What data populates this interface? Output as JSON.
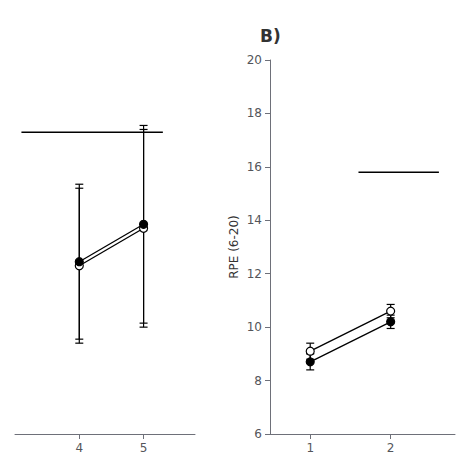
{
  "chart_data": [
    {
      "type": "line",
      "x": [
        4,
        5
      ],
      "series": [
        {
          "color": "black",
          "marker": "open_circle",
          "values": [
            12.3,
            13.7
          ],
          "errors": [
            2.9,
            3.7
          ]
        },
        {
          "color": "black",
          "marker": "circle",
          "values": [
            12.45,
            13.85
          ],
          "errors": [
            2.9,
            3.7
          ]
        }
      ],
      "xlim": [
        3.0,
        5.8
      ],
      "ylim": [
        6,
        20
      ],
      "xticks": [
        4,
        5
      ],
      "tick_labels": "x",
      "significance_line": {
        "x": [
          3.1,
          5.3
        ],
        "y": 17.3,
        "color": "black"
      }
    },
    {
      "type": "line",
      "title": "B)",
      "ylabel": "RPE (6-20)",
      "x": [
        1,
        2
      ],
      "series": [
        {
          "color": "black",
          "marker": "open_circle",
          "values": [
            9.1,
            10.6
          ],
          "errors": [
            0.3,
            0.25
          ]
        },
        {
          "color": "black",
          "marker": "circle",
          "values": [
            8.7,
            10.2
          ],
          "errors": [
            0.3,
            0.25
          ]
        }
      ],
      "xlim": [
        0.5,
        2.8
      ],
      "ylim": [
        6,
        20
      ],
      "xticks": [
        1,
        2
      ],
      "yticks": [
        6,
        8,
        10,
        12,
        14,
        16,
        18,
        20
      ],
      "significance_line": {
        "x": [
          1.6,
          2.6
        ],
        "y": 15.8,
        "color": "black"
      }
    }
  ]
}
